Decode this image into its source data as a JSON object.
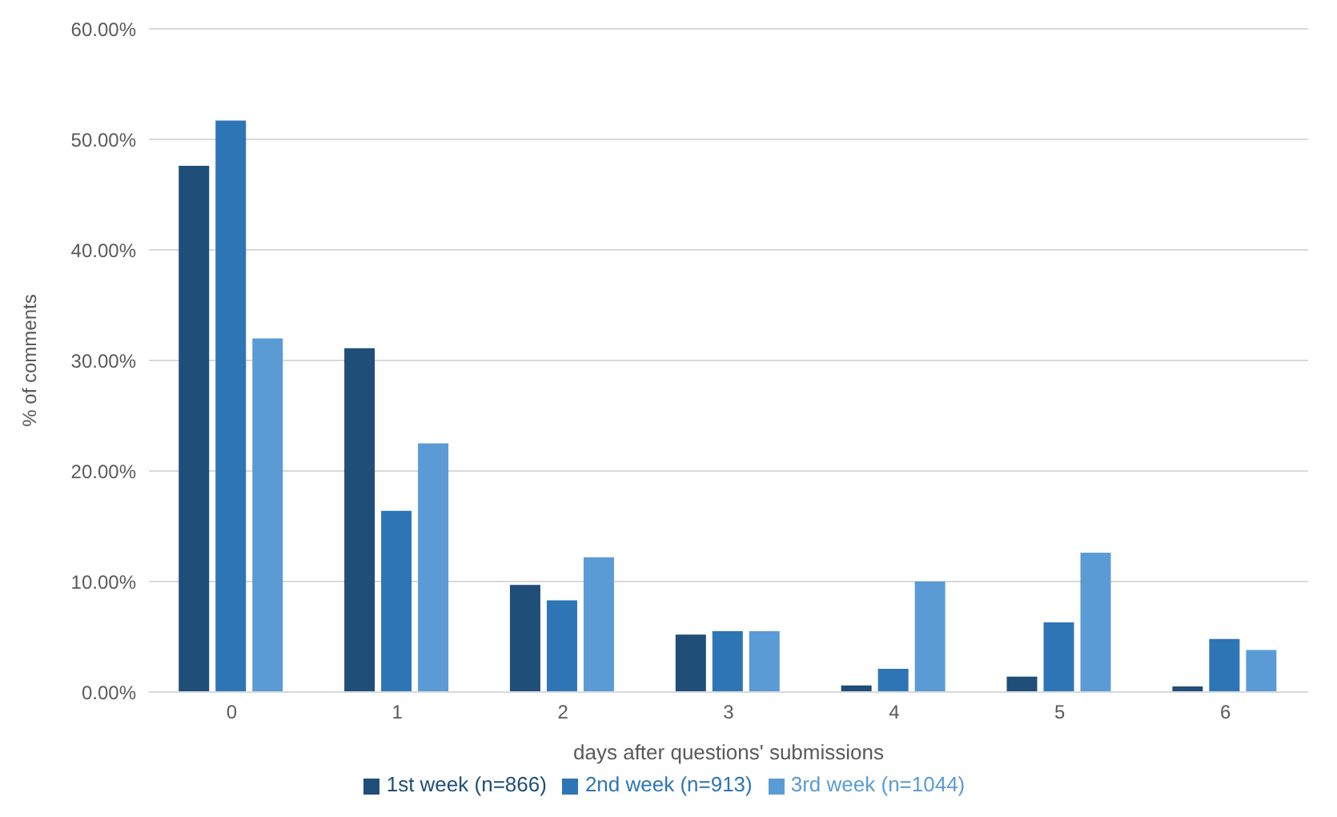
{
  "chart_data": {
    "type": "bar",
    "xlabel": "days after questions' submissions",
    "ylabel": "% of comments",
    "categories": [
      "0",
      "1",
      "2",
      "3",
      "4",
      "5",
      "6"
    ],
    "series": [
      {
        "name": "1st week (n=866)",
        "color": "#1f4e79",
        "values": [
          47.6,
          31.1,
          9.7,
          5.2,
          0.6,
          1.4,
          0.5
        ]
      },
      {
        "name": "2nd week (n=913)",
        "color": "#2e75b6",
        "values": [
          51.7,
          16.4,
          8.3,
          5.5,
          2.1,
          6.3,
          4.8
        ]
      },
      {
        "name": "3rd week (n=1044)",
        "color": "#5b9bd5",
        "values": [
          32.0,
          22.5,
          12.2,
          5.5,
          10.0,
          12.6,
          3.8
        ]
      }
    ],
    "ylim": [
      0,
      60
    ],
    "yticks": [
      {
        "value": 0,
        "label": "0.00%"
      },
      {
        "value": 10,
        "label": "10.00%"
      },
      {
        "value": 20,
        "label": "20.00%"
      },
      {
        "value": 30,
        "label": "30.00%"
      },
      {
        "value": 40,
        "label": "40.00%"
      },
      {
        "value": 50,
        "label": "50.00%"
      },
      {
        "value": 60,
        "label": "60.00%"
      }
    ],
    "grid": "y",
    "legend": "bottom"
  }
}
